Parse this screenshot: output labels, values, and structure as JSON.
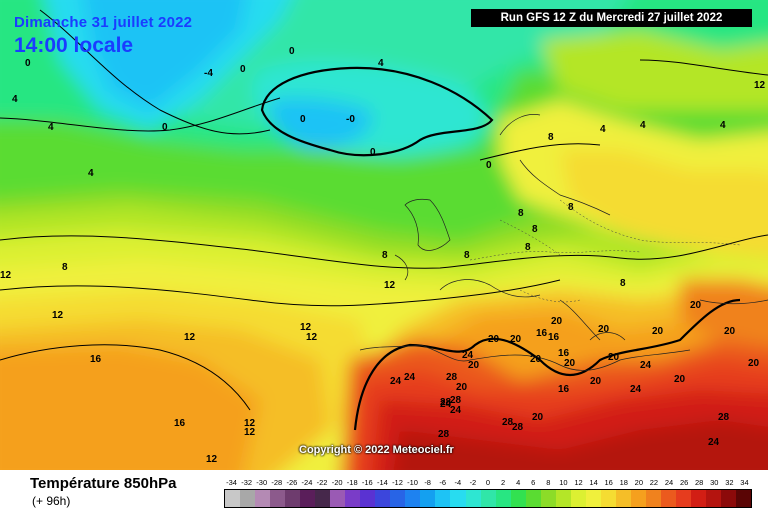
{
  "header": {
    "date": "Dimanche 31 juillet 2022",
    "time": "14:00 locale",
    "run": "Run GFS 12 Z du Mercredi 27 juillet 2022"
  },
  "map": {
    "copyright": "Copyright © 2022 Meteociel.fr",
    "labels": [
      {
        "text": "0"
      },
      {
        "text": "0"
      },
      {
        "text": "-4"
      },
      {
        "text": "0"
      },
      {
        "text": "4"
      },
      {
        "text": "4"
      },
      {
        "text": "0"
      },
      {
        "text": "-0"
      },
      {
        "text": "0"
      },
      {
        "text": "0"
      },
      {
        "text": "0"
      },
      {
        "text": "4"
      },
      {
        "text": "4"
      },
      {
        "text": "12"
      },
      {
        "text": "4"
      },
      {
        "text": "4"
      },
      {
        "text": "4"
      },
      {
        "text": "8"
      },
      {
        "text": "8"
      },
      {
        "text": "8"
      },
      {
        "text": "8"
      },
      {
        "text": "8"
      },
      {
        "text": "8"
      },
      {
        "text": "8"
      },
      {
        "text": "8"
      },
      {
        "text": "8"
      },
      {
        "text": "12"
      },
      {
        "text": "12"
      },
      {
        "text": "12"
      },
      {
        "text": "12"
      },
      {
        "text": "12"
      },
      {
        "text": "12"
      },
      {
        "text": "16"
      },
      {
        "text": "16"
      },
      {
        "text": "12"
      },
      {
        "text": "12"
      },
      {
        "text": "12"
      },
      {
        "text": "20"
      },
      {
        "text": "20"
      },
      {
        "text": "16"
      },
      {
        "text": "16"
      },
      {
        "text": "20"
      },
      {
        "text": "20"
      },
      {
        "text": "16"
      },
      {
        "text": "20"
      },
      {
        "text": "20"
      },
      {
        "text": "20"
      },
      {
        "text": "20"
      },
      {
        "text": "20"
      },
      {
        "text": "24"
      },
      {
        "text": "20"
      },
      {
        "text": "24"
      },
      {
        "text": "20"
      },
      {
        "text": "24"
      },
      {
        "text": "24"
      },
      {
        "text": "28"
      },
      {
        "text": "28"
      },
      {
        "text": "20"
      },
      {
        "text": "16"
      },
      {
        "text": "24"
      },
      {
        "text": "24"
      },
      {
        "text": "20"
      },
      {
        "text": "28"
      },
      {
        "text": "28"
      },
      {
        "text": "28"
      },
      {
        "text": "28"
      },
      {
        "text": "24"
      },
      {
        "text": "20"
      },
      {
        "text": "20"
      },
      {
        "text": "20"
      },
      {
        "text": "28"
      },
      {
        "text": "24"
      }
    ]
  },
  "legend": {
    "parameter": "Température 850hPa",
    "lead_time": "(+ 96h)",
    "scale": [
      {
        "value": "-34",
        "color": "#c8c8c8"
      },
      {
        "value": "-32",
        "color": "#a8a8a8"
      },
      {
        "value": "-30",
        "color": "#b48ab4"
      },
      {
        "value": "-28",
        "color": "#8c5a8c"
      },
      {
        "value": "-26",
        "color": "#6e3c6e"
      },
      {
        "value": "-24",
        "color": "#5a1e5a"
      },
      {
        "value": "-22",
        "color": "#46284b"
      },
      {
        "value": "-20",
        "color": "#9a5ab4"
      },
      {
        "value": "-18",
        "color": "#7a3cc8"
      },
      {
        "value": "-16",
        "color": "#5a32d2"
      },
      {
        "value": "-14",
        "color": "#3c46dc"
      },
      {
        "value": "-12",
        "color": "#2864e6"
      },
      {
        "value": "-10",
        "color": "#1e82f0"
      },
      {
        "value": "-8",
        "color": "#14a0f0"
      },
      {
        "value": "-6",
        "color": "#1ec3f5"
      },
      {
        "value": "-4",
        "color": "#28dcf0"
      },
      {
        "value": "-2",
        "color": "#2ee6d2"
      },
      {
        "value": "0",
        "color": "#30e6a8"
      },
      {
        "value": "2",
        "color": "#28e682"
      },
      {
        "value": "4",
        "color": "#32e150"
      },
      {
        "value": "6",
        "color": "#5adc32"
      },
      {
        "value": "8",
        "color": "#8cdc28"
      },
      {
        "value": "10",
        "color": "#b4e628"
      },
      {
        "value": "12",
        "color": "#dcf032"
      },
      {
        "value": "14",
        "color": "#f0f03c"
      },
      {
        "value": "16",
        "color": "#f5dc32"
      },
      {
        "value": "18",
        "color": "#f5be28"
      },
      {
        "value": "20",
        "color": "#f5a01e"
      },
      {
        "value": "22",
        "color": "#f0821e"
      },
      {
        "value": "24",
        "color": "#eb5a1e"
      },
      {
        "value": "26",
        "color": "#e63c1e"
      },
      {
        "value": "28",
        "color": "#d21e14"
      },
      {
        "value": "30",
        "color": "#b4140f"
      },
      {
        "value": "32",
        "color": "#8c0a0a"
      },
      {
        "value": "34",
        "color": "#5a0505"
      }
    ]
  }
}
